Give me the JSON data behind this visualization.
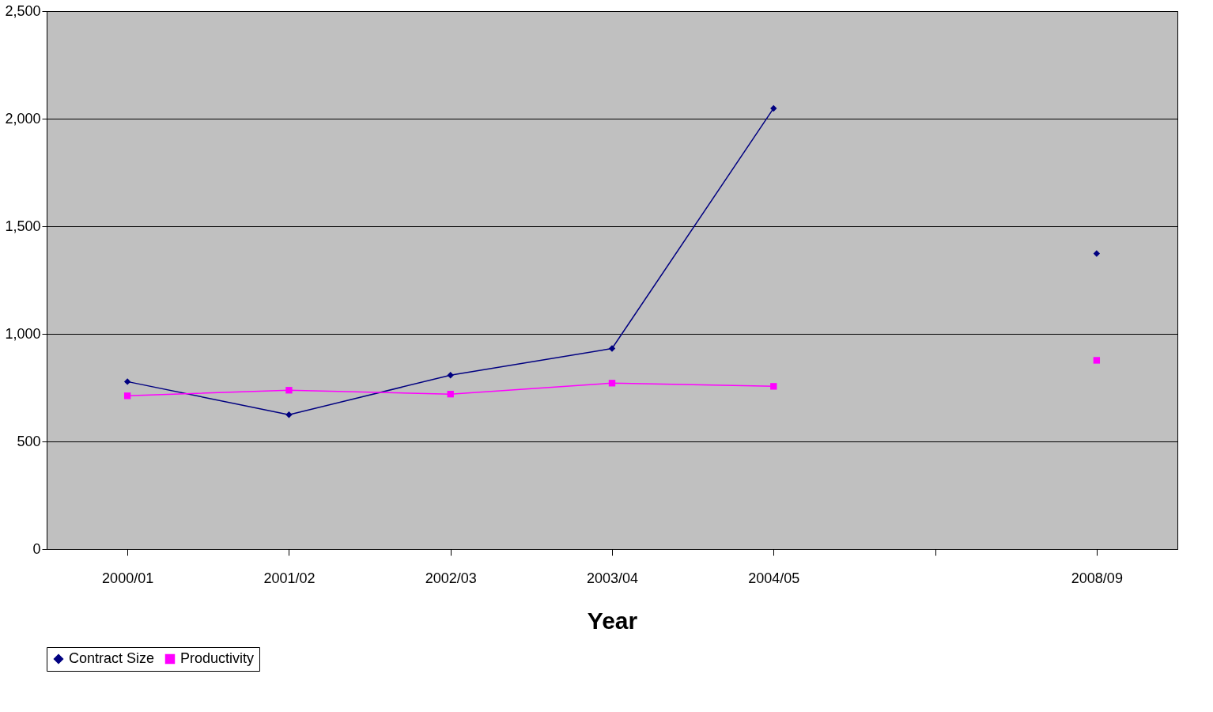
{
  "chart_data": {
    "type": "line",
    "xlabel": "Year",
    "categories": [
      "2000/01",
      "2001/02",
      "2002/03",
      "2003/04",
      "2004/05",
      null,
      "2008/09"
    ],
    "series": [
      {
        "name": "Contract Size",
        "color": "#000080",
        "marker": "diamond",
        "values": [
          778,
          624,
          808,
          932,
          2048,
          null,
          1373
        ]
      },
      {
        "name": "Productivity",
        "color": "#ff00ff",
        "marker": "square",
        "values": [
          712,
          738,
          720,
          771,
          756,
          null,
          877
        ]
      }
    ],
    "ylim": [
      0,
      2500
    ],
    "yticks": [
      0,
      500,
      {
        "value": 1000,
        "label": "1,000"
      },
      {
        "value": 1500,
        "label": "1,500"
      },
      {
        "value": 2000,
        "label": "2,000"
      },
      {
        "value": 2500,
        "label": "2,500"
      }
    ],
    "grid": "y",
    "legend": "bottom",
    "line_style": "solid"
  }
}
